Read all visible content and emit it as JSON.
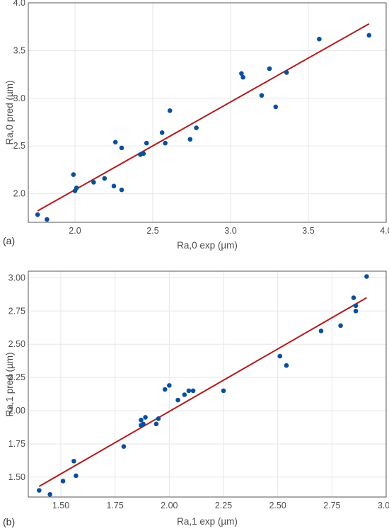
{
  "colors": {
    "points": "#0a4f9e",
    "fit_line": "#b21a1a",
    "grid": "#e6e6e6",
    "panel_border": "#555555",
    "background": "#ffffff"
  },
  "chart_data": [
    {
      "panel_label": "(a)",
      "type": "scatter",
      "xlabel": "Ra,0 exp (µm)",
      "ylabel": "Ra,0 pred (µm)",
      "xlim": [
        1.7,
        4.0
      ],
      "ylim": [
        1.7,
        4.0
      ],
      "xticks": [
        2.0,
        2.5,
        3.0,
        3.5,
        4.0
      ],
      "xtick_labels": [
        "2.0",
        "2.5",
        "3.0",
        "3.5",
        "4.0"
      ],
      "yticks": [
        2.0,
        2.5,
        3.0,
        3.5,
        4.0
      ],
      "ytick_labels": [
        "2.0",
        "2.5",
        "3.0",
        "3.5",
        "4.0"
      ],
      "grid": true,
      "points": [
        [
          1.76,
          1.78
        ],
        [
          1.82,
          1.73
        ],
        [
          1.99,
          2.2
        ],
        [
          2.0,
          2.03
        ],
        [
          2.01,
          2.06
        ],
        [
          2.12,
          2.12
        ],
        [
          2.19,
          2.16
        ],
        [
          2.25,
          2.08
        ],
        [
          2.26,
          2.54
        ],
        [
          2.3,
          2.48
        ],
        [
          2.3,
          2.04
        ],
        [
          2.42,
          2.41
        ],
        [
          2.44,
          2.42
        ],
        [
          2.46,
          2.53
        ],
        [
          2.56,
          2.64
        ],
        [
          2.58,
          2.53
        ],
        [
          2.61,
          2.87
        ],
        [
          2.74,
          2.57
        ],
        [
          2.78,
          2.69
        ],
        [
          3.07,
          3.26
        ],
        [
          3.08,
          3.22
        ],
        [
          3.2,
          3.03
        ],
        [
          3.25,
          3.31
        ],
        [
          3.29,
          2.91
        ],
        [
          3.36,
          3.27
        ],
        [
          3.57,
          3.62
        ],
        [
          3.89,
          3.66
        ]
      ],
      "fit_line": {
        "x": [
          1.76,
          3.89
        ],
        "y": [
          1.82,
          3.78
        ]
      }
    },
    {
      "panel_label": "(b)",
      "type": "scatter",
      "xlabel": "Ra,1 exp (µm)",
      "ylabel": "Ra,1 pred (µm)",
      "xlim": [
        1.35,
        3.0
      ],
      "ylim": [
        1.35,
        3.05
      ],
      "xticks": [
        1.5,
        1.75,
        2.0,
        2.25,
        2.5,
        2.75,
        3.0
      ],
      "xtick_labels": [
        "1.50",
        "1.75",
        "2.00",
        "2.25",
        "2.50",
        "2.75",
        "3.00"
      ],
      "yticks": [
        1.5,
        1.75,
        2.0,
        2.25,
        2.5,
        2.75,
        3.0
      ],
      "ytick_labels": [
        "1.50",
        "1.75",
        "2.00",
        "2.25",
        "2.50",
        "2.75",
        "3.00"
      ],
      "grid": true,
      "points": [
        [
          1.4,
          1.4
        ],
        [
          1.45,
          1.37
        ],
        [
          1.51,
          1.47
        ],
        [
          1.56,
          1.62
        ],
        [
          1.57,
          1.51
        ],
        [
          1.79,
          1.73
        ],
        [
          1.87,
          1.93
        ],
        [
          1.87,
          1.89
        ],
        [
          1.88,
          1.9
        ],
        [
          1.89,
          1.95
        ],
        [
          1.94,
          1.9
        ],
        [
          1.95,
          1.94
        ],
        [
          1.98,
          2.16
        ],
        [
          2.0,
          2.19
        ],
        [
          2.04,
          2.08
        ],
        [
          2.07,
          2.12
        ],
        [
          2.09,
          2.15
        ],
        [
          2.11,
          2.15
        ],
        [
          2.25,
          2.15
        ],
        [
          2.51,
          2.41
        ],
        [
          2.54,
          2.34
        ],
        [
          2.7,
          2.6
        ],
        [
          2.79,
          2.64
        ],
        [
          2.85,
          2.85
        ],
        [
          2.86,
          2.79
        ],
        [
          2.86,
          2.75
        ],
        [
          2.91,
          3.01
        ]
      ],
      "fit_line": {
        "x": [
          1.4,
          2.91
        ],
        "y": [
          1.43,
          2.85
        ]
      }
    }
  ]
}
